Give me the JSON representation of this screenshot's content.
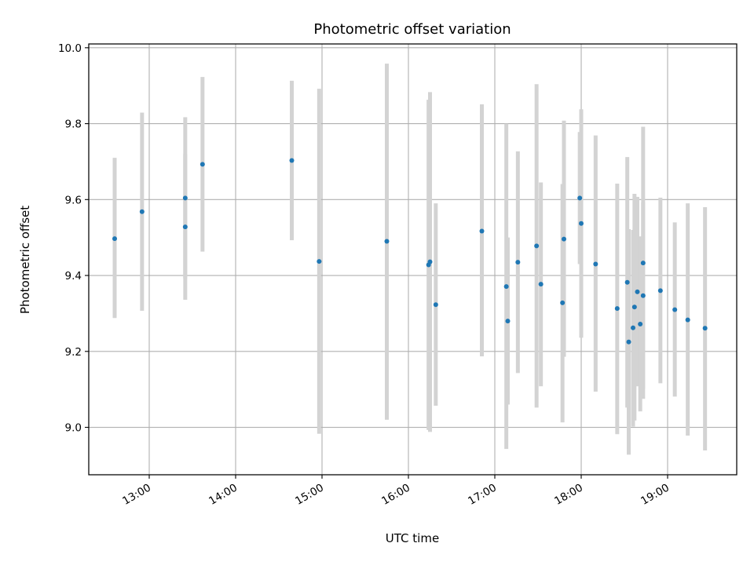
{
  "chart_data": {
    "type": "scatter",
    "title": "Photometric offset variation",
    "xlabel": "UTC time",
    "ylabel": "Photometric offset",
    "x_unit": "hours UTC",
    "xlim": [
      "12:18",
      "19:48"
    ],
    "ylim": [
      8.875,
      10.01
    ],
    "x_ticks": [
      "13:00",
      "14:00",
      "15:00",
      "16:00",
      "17:00",
      "18:00",
      "19:00"
    ],
    "y_ticks": [
      "9.0",
      "9.2",
      "9.4",
      "9.6",
      "9.8",
      "10.0"
    ],
    "grid": true,
    "colors": {
      "point": "#1f77b4",
      "errorbar": "#d3d3d3",
      "grid": "#b0b0b0"
    },
    "series": [
      {
        "points": [
          {
            "time": "12:36",
            "y": 9.497,
            "lo": 9.288,
            "hi": 9.71
          },
          {
            "time": "12:55",
            "y": 9.568,
            "lo": 9.307,
            "hi": 9.829
          },
          {
            "time": "13:25",
            "y": 9.528,
            "lo": 9.336,
            "hi": 9.72
          },
          {
            "time": "13:25",
            "y": 9.604,
            "lo": 9.392,
            "hi": 9.817
          },
          {
            "time": "13:37",
            "y": 9.693,
            "lo": 9.463,
            "hi": 9.923
          },
          {
            "time": "14:39",
            "y": 9.703,
            "lo": 9.493,
            "hi": 9.913
          },
          {
            "time": "14:58",
            "y": 9.437,
            "lo": 8.983,
            "hi": 9.892
          },
          {
            "time": "15:45",
            "y": 9.49,
            "lo": 9.02,
            "hi": 9.958
          },
          {
            "time": "16:14",
            "y": 9.428,
            "lo": 8.993,
            "hi": 9.863
          },
          {
            "time": "16:15",
            "y": 9.436,
            "lo": 8.988,
            "hi": 9.883
          },
          {
            "time": "16:19",
            "y": 9.323,
            "lo": 9.057,
            "hi": 9.59
          },
          {
            "time": "16:51",
            "y": 9.517,
            "lo": 9.187,
            "hi": 9.851
          },
          {
            "time": "17:08",
            "y": 9.371,
            "lo": 8.943,
            "hi": 9.8
          },
          {
            "time": "17:09",
            "y": 9.28,
            "lo": 9.06,
            "hi": 9.5
          },
          {
            "time": "17:16",
            "y": 9.435,
            "lo": 9.143,
            "hi": 9.727
          },
          {
            "time": "17:29",
            "y": 9.478,
            "lo": 9.052,
            "hi": 9.904
          },
          {
            "time": "17:32",
            "y": 9.377,
            "lo": 9.108,
            "hi": 9.645
          },
          {
            "time": "17:47",
            "y": 9.328,
            "lo": 9.013,
            "hi": 9.641
          },
          {
            "time": "17:48",
            "y": 9.496,
            "lo": 9.186,
            "hi": 9.808
          },
          {
            "time": "17:59",
            "y": 9.604,
            "lo": 9.43,
            "hi": 9.778
          },
          {
            "time": "18:00",
            "y": 9.537,
            "lo": 9.236,
            "hi": 9.838
          },
          {
            "time": "18:10",
            "y": 9.43,
            "lo": 9.094,
            "hi": 9.769
          },
          {
            "time": "18:25",
            "y": 9.313,
            "lo": 8.982,
            "hi": 9.642
          },
          {
            "time": "18:32",
            "y": 9.382,
            "lo": 9.052,
            "hi": 9.712
          },
          {
            "time": "18:33",
            "y": 9.225,
            "lo": 8.928,
            "hi": 9.522
          },
          {
            "time": "18:36",
            "y": 9.262,
            "lo": 9.002,
            "hi": 9.52
          },
          {
            "time": "18:37",
            "y": 9.317,
            "lo": 9.018,
            "hi": 9.615
          },
          {
            "time": "18:39",
            "y": 9.357,
            "lo": 9.108,
            "hi": 9.607
          },
          {
            "time": "18:41",
            "y": 9.272,
            "lo": 9.042,
            "hi": 9.503
          },
          {
            "time": "18:43",
            "y": 9.433,
            "lo": 9.075,
            "hi": 9.792
          },
          {
            "time": "18:43",
            "y": 9.347,
            "lo": 9.103,
            "hi": 9.592
          },
          {
            "time": "18:55",
            "y": 9.36,
            "lo": 9.116,
            "hi": 9.605
          },
          {
            "time": "19:05",
            "y": 9.31,
            "lo": 9.081,
            "hi": 9.54
          },
          {
            "time": "19:14",
            "y": 9.283,
            "lo": 8.978,
            "hi": 9.59
          },
          {
            "time": "19:26",
            "y": 9.261,
            "lo": 8.939,
            "hi": 9.58
          }
        ]
      }
    ]
  }
}
